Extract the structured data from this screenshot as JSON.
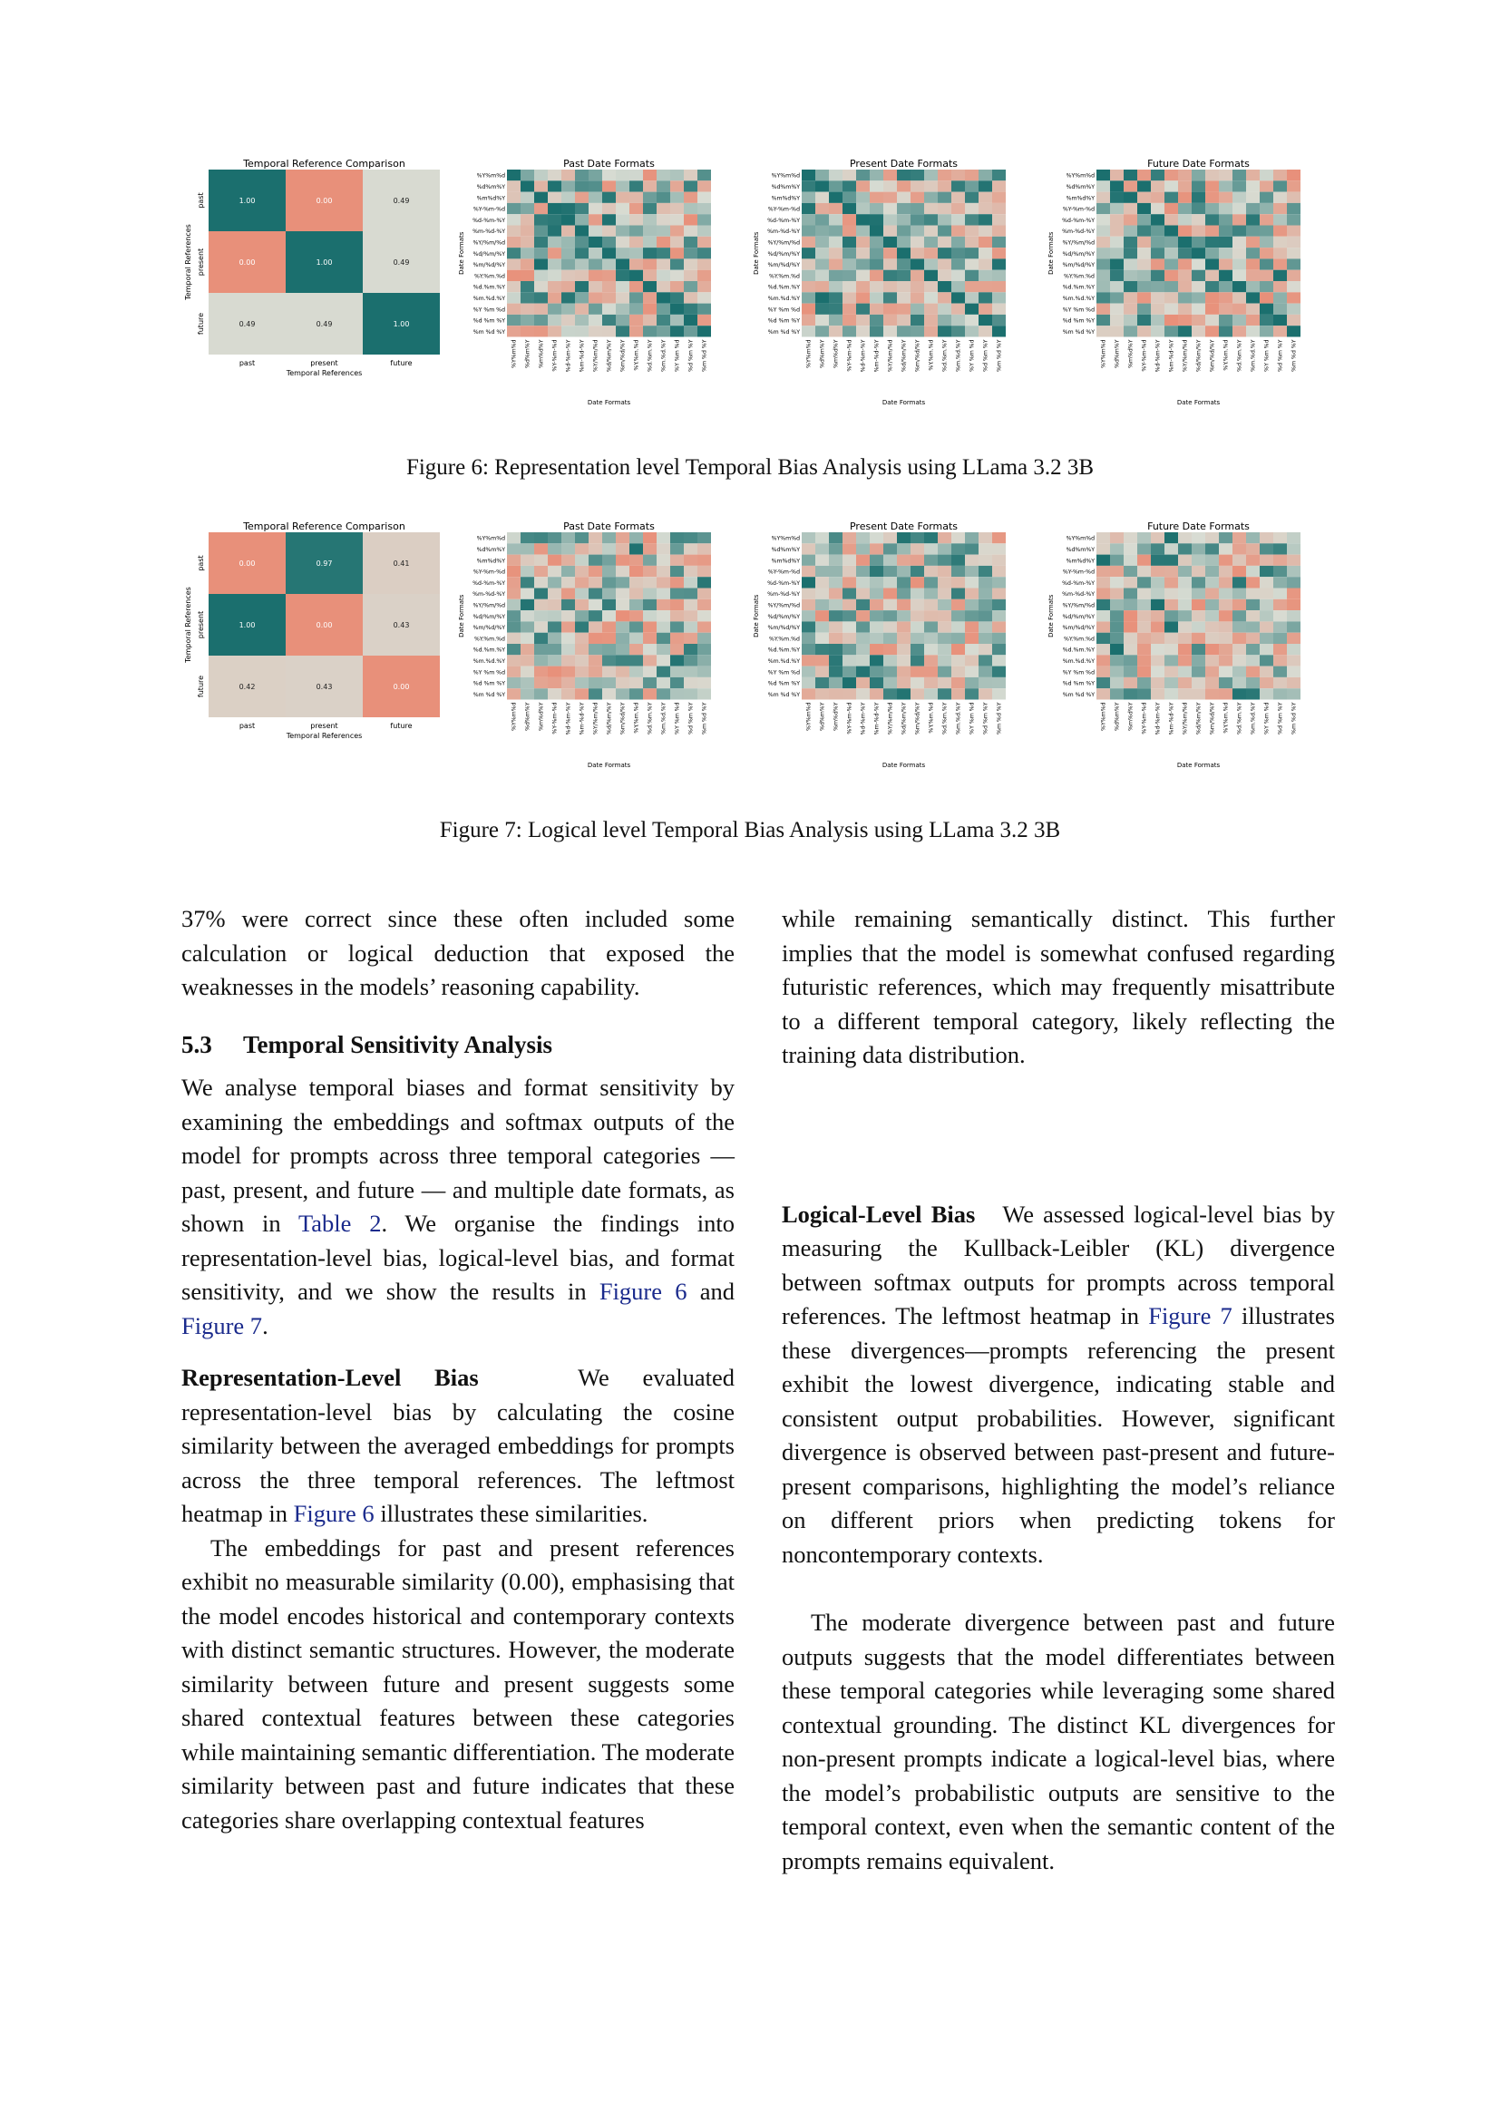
{
  "figures": [
    {
      "id": "fig6",
      "caption": "Figure 6: Representation level Temporal Bias Analysis using LLama 3.2 3B",
      "comparison": {
        "title": "Temporal Reference Comparison",
        "xlabel": "Temporal References",
        "ylabel": "Temporal References",
        "labels": [
          "past",
          "present",
          "future"
        ],
        "values": [
          [
            1.0,
            0.0,
            0.49
          ],
          [
            0.0,
            1.0,
            0.49
          ],
          [
            0.49,
            0.49,
            1.0
          ]
        ]
      },
      "formats": [
        {
          "title": "Past Date Formats",
          "xlabel": "Date Formats",
          "ylabel": "Date Formats"
        },
        {
          "title": "Present Date Formats",
          "xlabel": "Date Formats",
          "ylabel": "Date Formats"
        },
        {
          "title": "Future Date Formats",
          "xlabel": "Date Formats",
          "ylabel": "Date Formats"
        }
      ]
    },
    {
      "id": "fig7",
      "caption": "Figure 7: Logical level Temporal Bias Analysis using LLama 3.2 3B",
      "comparison": {
        "title": "Temporal Reference Comparison",
        "xlabel": "Temporal References",
        "ylabel": "Temporal References",
        "labels": [
          "past",
          "present",
          "future"
        ],
        "values": [
          [
            0.0,
            0.97,
            0.41
          ],
          [
            1.0,
            0.0,
            0.43
          ],
          [
            0.42,
            0.43,
            0.0
          ]
        ]
      },
      "formats": [
        {
          "title": "Past Date Formats",
          "xlabel": "Date Formats",
          "ylabel": "Date Formats"
        },
        {
          "title": "Present Date Formats",
          "xlabel": "Date Formats",
          "ylabel": "Date Formats"
        },
        {
          "title": "Future Date Formats",
          "xlabel": "Date Formats",
          "ylabel": "Date Formats"
        }
      ]
    }
  ],
  "date_formats": [
    "%Y%m%d",
    "%d%m%Y",
    "%m%d%Y",
    "%Y-%m-%d",
    "%d-%m-%Y",
    "%m-%d-%Y",
    "%Y/%m/%d",
    "%d/%m/%Y",
    "%m/%d/%Y",
    "%Y.%m.%d",
    "%d.%m.%Y",
    "%m.%d.%Y",
    "%Y %m %d",
    "%d %m %Y",
    "%m %d %Y"
  ],
  "colors": {
    "teal": "#1b6f6e",
    "salmon": "#e8907a",
    "neutral": "#d8dcd3"
  },
  "text": {
    "left_p1": "37% were correct since these often included some calculation or logical deduction that exposed the weaknesses in the models’ reasoning capability.",
    "sec_num": "5.3",
    "sec_title": "Temporal Sensitivity Analysis",
    "left_p2a": "We analyse temporal biases and format sensitivity by examining the embeddings and softmax outputs of the model for prompts across three temporal categories — past, present, and future — and multiple date formats, as shown in",
    "link_table2": "Table 2",
    "left_p2b": ". We organise the findings into representation-level bias, logical-level bias, and format sensitivity, and we show the results in",
    "link_fig6": "Figure 6",
    "left_p2c": "and",
    "link_fig7": "Figure 7",
    "left_p2d": ".",
    "rep_head": "Representation-Level Bias",
    "left_p3a": "We evaluated representation-level bias by calculating the cosine similarity between the averaged embeddings for prompts across the three temporal references. The leftmost heatmap in",
    "link_fig6b": "Figure 6",
    "left_p3b": "illustrates these similarities.",
    "left_p4": "The embeddings for past and present references exhibit no measurable similarity (0.00), emphasising that the model encodes historical and contemporary contexts with distinct semantic structures. However, the moderate similarity between future and present suggests some shared contextual features between these categories while maintaining semantic differentiation. The moderate similarity between past and future indicates that these categories share overlapping contextual features",
    "right_p1": "while remaining semantically distinct. This further implies that the model is somewhat confused regarding futuristic references, which may frequently misattribute to a different temporal category, likely reflecting the training data distribution.",
    "log_head": "Logical-Level Bias",
    "right_p2a": "We assessed logical-level bias by measuring the Kullback-Leibler (KL) divergence between softmax outputs for prompts across temporal references. The leftmost heatmap in",
    "link_fig7b": "Figure 7",
    "right_p2b": "illustrates these divergences—prompts referencing the present exhibit the lowest divergence, indicating stable and consistent output probabilities. However, significant divergence is observed between past-present and future-present comparisons, highlighting the model’s reliance on different priors when predicting tokens for noncontemporary contexts.",
    "right_p3": "The moderate divergence between past and future outputs suggests that the model differentiates between these temporal categories while leveraging some shared contextual grounding. The distinct KL divergences for non-present prompts indicate a logical-level bias, where the model’s probabilistic outputs are sensitive to the temporal context, even when the semantic content of the prompts remains equivalent."
  }
}
